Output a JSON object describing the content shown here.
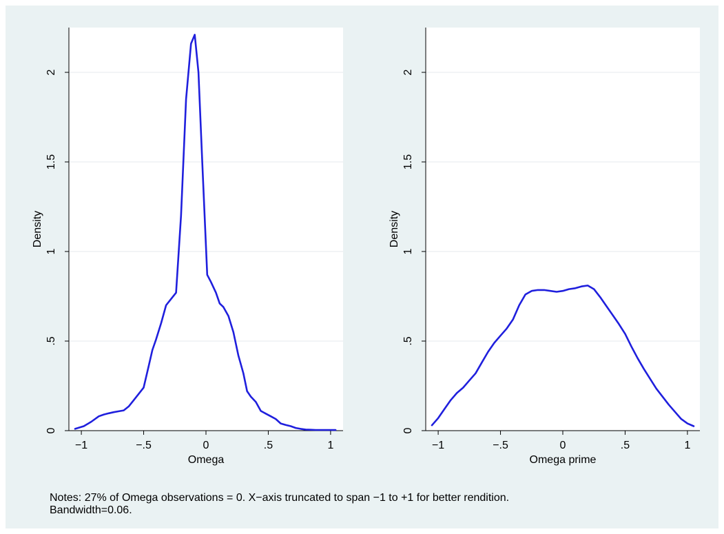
{
  "chart_data": [
    {
      "type": "line",
      "xlabel": "Omega",
      "ylabel": "Density",
      "xlim": [
        -1.1,
        1.1
      ],
      "ylim": [
        0,
        2.25
      ],
      "xticks": [
        -1,
        -0.5,
        0,
        0.5,
        1
      ],
      "xtick_labels": [
        "−1",
        "−.5",
        "0",
        ".5",
        "1"
      ],
      "yticks": [
        0,
        0.5,
        1,
        1.5,
        2
      ],
      "ytick_labels": [
        "0",
        ".5",
        "1",
        "1.5",
        "2"
      ],
      "grid": true,
      "series": [
        {
          "color": "#1f1fdd",
          "x": [
            -1.05,
            -0.98,
            -0.92,
            -0.86,
            -0.82,
            -0.78,
            -0.74,
            -0.7,
            -0.66,
            -0.62,
            -0.58,
            -0.54,
            -0.5,
            -0.46,
            -0.43,
            -0.4,
            -0.36,
            -0.32,
            -0.28,
            -0.24,
            -0.2,
            -0.16,
            -0.12,
            -0.09,
            -0.06,
            -0.03,
            0.01,
            0.04,
            0.08,
            0.11,
            0.14,
            0.18,
            0.22,
            0.26,
            0.3,
            0.33,
            0.36,
            0.4,
            0.44,
            0.48,
            0.52,
            0.56,
            0.6,
            0.64,
            0.68,
            0.72,
            0.76,
            0.8,
            0.84,
            0.88,
            0.92,
            0.96,
            1.0,
            1.04
          ],
          "y": [
            0.01,
            0.025,
            0.05,
            0.08,
            0.09,
            0.097,
            0.103,
            0.108,
            0.113,
            0.135,
            0.17,
            0.205,
            0.24,
            0.36,
            0.45,
            0.51,
            0.6,
            0.7,
            0.735,
            0.77,
            1.2,
            1.85,
            2.16,
            2.21,
            2.0,
            1.5,
            0.87,
            0.83,
            0.77,
            0.71,
            0.69,
            0.64,
            0.55,
            0.42,
            0.32,
            0.22,
            0.19,
            0.16,
            0.11,
            0.095,
            0.08,
            0.065,
            0.04,
            0.032,
            0.025,
            0.015,
            0.01,
            0.006,
            0.005,
            0.004,
            0.004,
            0.004,
            0.004,
            0.004
          ]
        }
      ]
    },
    {
      "type": "line",
      "xlabel": "Omega prime",
      "ylabel": "Density",
      "xlim": [
        -1.1,
        1.1
      ],
      "ylim": [
        0,
        2.25
      ],
      "xticks": [
        -1,
        -0.5,
        0,
        0.5,
        1
      ],
      "xtick_labels": [
        "−1",
        "−.5",
        "0",
        ".5",
        "1"
      ],
      "yticks": [
        0,
        0.5,
        1,
        1.5,
        2
      ],
      "ytick_labels": [
        "0",
        ".5",
        "1",
        "1.5",
        "2"
      ],
      "grid": true,
      "series": [
        {
          "color": "#1f1fdd",
          "x": [
            -1.05,
            -1.0,
            -0.95,
            -0.9,
            -0.85,
            -0.8,
            -0.75,
            -0.7,
            -0.65,
            -0.6,
            -0.55,
            -0.5,
            -0.45,
            -0.4,
            -0.35,
            -0.3,
            -0.25,
            -0.2,
            -0.15,
            -0.1,
            -0.05,
            0.0,
            0.05,
            0.1,
            0.15,
            0.2,
            0.25,
            0.3,
            0.35,
            0.4,
            0.45,
            0.5,
            0.55,
            0.6,
            0.65,
            0.7,
            0.75,
            0.8,
            0.85,
            0.9,
            0.95,
            1.0,
            1.05
          ],
          "y": [
            0.03,
            0.07,
            0.12,
            0.17,
            0.21,
            0.24,
            0.28,
            0.32,
            0.38,
            0.44,
            0.49,
            0.53,
            0.57,
            0.62,
            0.7,
            0.76,
            0.78,
            0.785,
            0.785,
            0.78,
            0.775,
            0.78,
            0.79,
            0.795,
            0.805,
            0.81,
            0.79,
            0.745,
            0.695,
            0.645,
            0.595,
            0.54,
            0.47,
            0.405,
            0.345,
            0.29,
            0.235,
            0.19,
            0.145,
            0.105,
            0.065,
            0.04,
            0.025
          ]
        }
      ]
    }
  ],
  "notes": {
    "line1": "Notes: 27% of Omega observations = 0. X−axis truncated to span −1 to +1 for better rendition.",
    "line2": "Bandwidth=0.06."
  }
}
